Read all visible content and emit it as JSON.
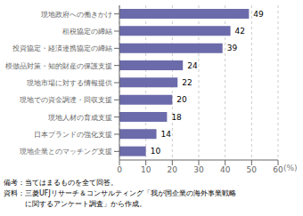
{
  "chart_data": {
    "type": "bar",
    "orientation": "horizontal",
    "categories": [
      "現地企業とのマッチング支援",
      "日本ブランドの強化支援",
      "現地人材の育成支援",
      "現地での資金調達・回収支援",
      "現地市場に対する情報提供",
      "模倣品対策・知的財産の保護支援",
      "投資協定・経済連携協定の締結",
      "租税協定の締結",
      "現地政府への働きかけ"
    ],
    "values": [
      10,
      14,
      18,
      20,
      22,
      24,
      39,
      42,
      49
    ],
    "color": "#6b6bab",
    "xlim": [
      0,
      60
    ],
    "xticks": [
      0,
      10,
      20,
      30,
      40,
      50,
      60
    ],
    "xlabel": "(%)",
    "grid": true,
    "data_labels": true,
    "annotations": [
      "備考：当てはまるものを全て回答。",
      "資料：三菱UFJリサーチ＆コンサルティング「我が国企業の海外事業戦略",
      "　　　に関するアンケート調査」から作成。"
    ]
  }
}
